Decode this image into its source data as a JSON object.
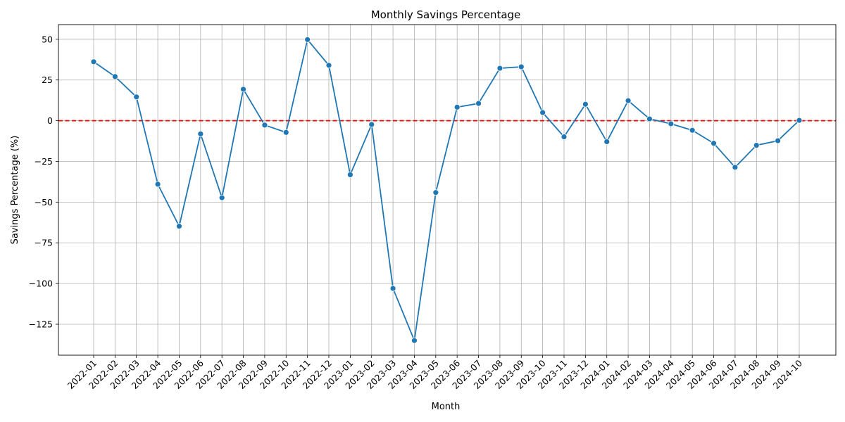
{
  "chart_data": {
    "type": "line",
    "title": "Monthly Savings Percentage",
    "xlabel": "Month",
    "ylabel": "Savings Percentage (%)",
    "ylim": [
      -144,
      59
    ],
    "yticks": [
      50,
      25,
      0,
      -25,
      -50,
      -75,
      -100,
      -125
    ],
    "ytick_labels": [
      "50",
      "25",
      "0",
      "−25",
      "−50",
      "−75",
      "−100",
      "−125"
    ],
    "grid": true,
    "reference_line": {
      "y": 0,
      "style": "dashed",
      "color": "#ff0000"
    },
    "series_color": "#1f77b4",
    "categories": [
      "2022-01",
      "2022-02",
      "2022-03",
      "2022-04",
      "2022-05",
      "2022-06",
      "2022-07",
      "2022-08",
      "2022-09",
      "2022-10",
      "2022-11",
      "2022-12",
      "2023-01",
      "2023-02",
      "2023-03",
      "2023-04",
      "2023-05",
      "2023-06",
      "2023-07",
      "2023-08",
      "2023-09",
      "2023-10",
      "2023-11",
      "2023-12",
      "2024-01",
      "2024-02",
      "2024-03",
      "2024-04",
      "2024-05",
      "2024-06",
      "2024-07",
      "2024-08",
      "2024-09",
      "2024-10"
    ],
    "values": [
      36.2,
      27.1,
      14.6,
      -39.0,
      -64.8,
      -8.1,
      -47.3,
      19.3,
      -2.7,
      -7.2,
      49.8,
      34.0,
      -33.2,
      -2.3,
      -103.0,
      -135.0,
      -44.1,
      8.3,
      10.6,
      32.2,
      33.1,
      5.0,
      -9.9,
      10.1,
      -12.9,
      12.3,
      1.1,
      -1.9,
      -5.9,
      -13.9,
      -28.6,
      -15.1,
      -12.3,
      0.2
    ]
  }
}
